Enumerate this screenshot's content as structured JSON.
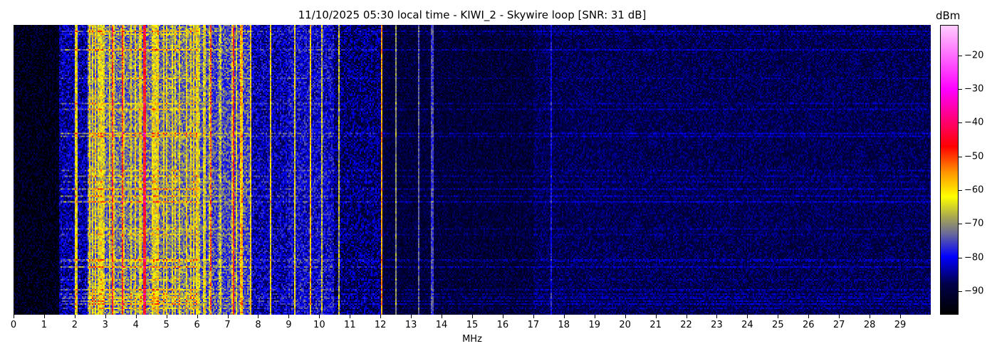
{
  "chart_data": {
    "type": "heatmap",
    "title": "11/10/2025 05:30 local time - KIWI_2 - Skywire loop [SNR: 31 dB]",
    "xlabel": "MHz",
    "ylabel": "",
    "xlim": [
      0,
      30
    ],
    "x_ticks": [
      "0",
      "1",
      "2",
      "3",
      "4",
      "5",
      "6",
      "7",
      "8",
      "9",
      "10",
      "11",
      "12",
      "13",
      "14",
      "15",
      "16",
      "17",
      "18",
      "19",
      "20",
      "21",
      "22",
      "23",
      "24",
      "25",
      "26",
      "27",
      "28",
      "29"
    ],
    "colorbar": {
      "label": "dBm",
      "range": [
        -97,
        -11
      ],
      "ticks": [
        -20,
        -30,
        -40,
        -50,
        -60,
        -70,
        -80,
        -90
      ],
      "tick_labels": [
        "−20",
        "−30",
        "−40",
        "−50",
        "−60",
        "−70",
        "−80",
        "−90"
      ],
      "colormap": [
        {
          "dBm": -97,
          "color": "#000000"
        },
        {
          "dBm": -88,
          "color": "#00004a"
        },
        {
          "dBm": -80,
          "color": "#0000ff"
        },
        {
          "dBm": -73,
          "color": "#6a6a9a"
        },
        {
          "dBm": -68,
          "color": "#a8a850"
        },
        {
          "dBm": -62,
          "color": "#ffff00"
        },
        {
          "dBm": -55,
          "color": "#ff9900"
        },
        {
          "dBm": -47,
          "color": "#ff0000"
        },
        {
          "dBm": -30,
          "color": "#ff00ff"
        },
        {
          "dBm": -11,
          "color": "#ffccff"
        }
      ]
    },
    "band_profile_dBm": [
      {
        "from": 0,
        "to": 1.5,
        "level": -94
      },
      {
        "from": 1.5,
        "to": 2.4,
        "level": -84
      },
      {
        "from": 2.4,
        "to": 6.0,
        "level": -72
      },
      {
        "from": 6.0,
        "to": 7.8,
        "level": -75
      },
      {
        "from": 7.8,
        "to": 9.0,
        "level": -83
      },
      {
        "from": 9.0,
        "to": 10.5,
        "level": -81
      },
      {
        "from": 10.5,
        "to": 12.0,
        "level": -87
      },
      {
        "from": 12.0,
        "to": 17.0,
        "level": -90
      },
      {
        "from": 17.0,
        "to": 30.0,
        "level": -88
      }
    ],
    "carriers": [
      {
        "mhz": 2.05,
        "level": -63
      },
      {
        "mhz": 2.6,
        "level": -62
      },
      {
        "mhz": 2.8,
        "level": -64
      },
      {
        "mhz": 3.25,
        "level": -50
      },
      {
        "mhz": 3.55,
        "level": -50
      },
      {
        "mhz": 4.28,
        "level": -46
      },
      {
        "mhz": 4.9,
        "level": -62
      },
      {
        "mhz": 5.9,
        "level": -62
      },
      {
        "mhz": 6.0,
        "level": -60
      },
      {
        "mhz": 6.45,
        "level": -52
      },
      {
        "mhz": 7.2,
        "level": -48
      },
      {
        "mhz": 7.45,
        "level": -58
      },
      {
        "mhz": 7.75,
        "level": -62
      },
      {
        "mhz": 8.4,
        "level": -62
      },
      {
        "mhz": 9.2,
        "level": -64
      },
      {
        "mhz": 9.7,
        "level": -60
      },
      {
        "mhz": 10.1,
        "level": -66
      },
      {
        "mhz": 10.65,
        "level": -66
      },
      {
        "mhz": 12.05,
        "level": -56
      },
      {
        "mhz": 12.5,
        "level": -70
      },
      {
        "mhz": 13.25,
        "level": -74
      },
      {
        "mhz": 13.7,
        "level": -76
      },
      {
        "mhz": 17.6,
        "level": -80
      }
    ]
  }
}
